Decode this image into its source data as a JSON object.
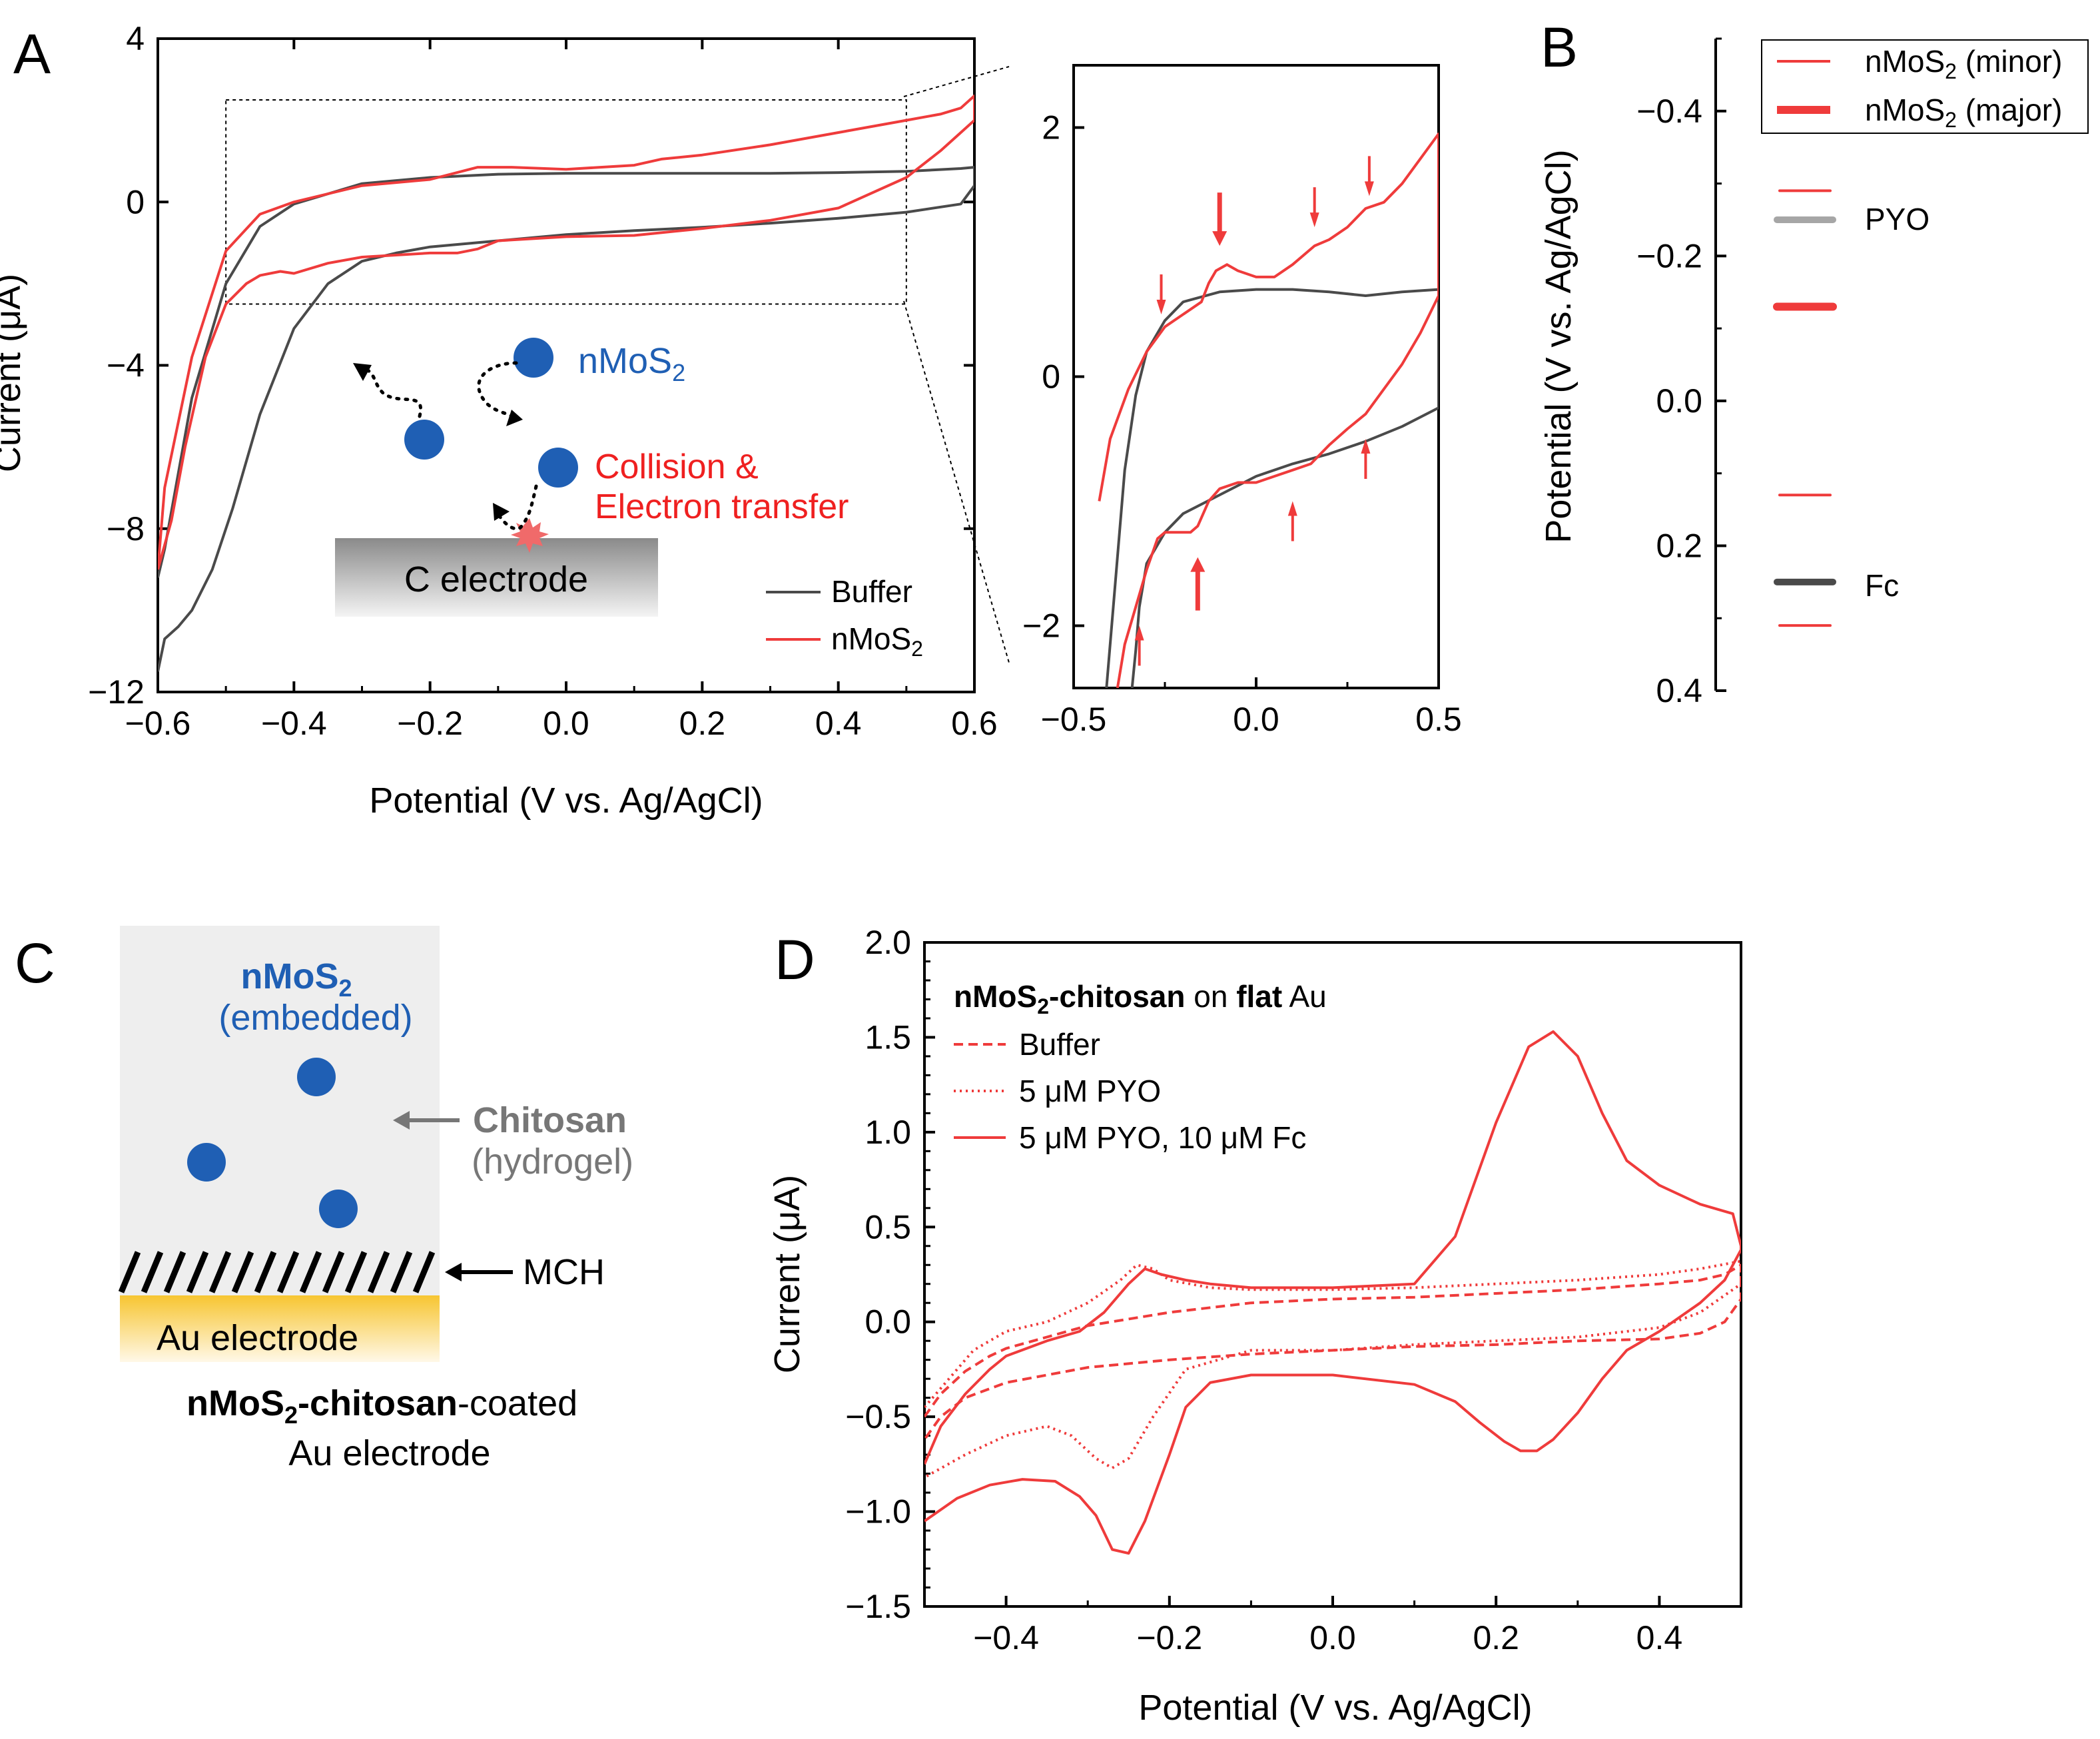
{
  "colors": {
    "buffer": "#4a4a4a",
    "nmos2": "#ef3b3b",
    "pyo": "#a6a6a6",
    "fc": "#4a4a4a",
    "particle": "#1f5fb4",
    "panel_c_bg": "#eeeeee",
    "au": "#f7c531",
    "chitosan_arrow": "#777777"
  },
  "panel_labels": {
    "a": "A",
    "b": "B",
    "c": "C",
    "d": "D"
  },
  "chart_data": [
    {
      "id": "A-main",
      "type": "line",
      "xlabel": "Potential  (V vs. Ag/AgCl)",
      "ylabel": "Current (μA)",
      "xlim": [
        -0.6,
        0.6
      ],
      "ylim": [
        -12,
        4
      ],
      "xticks": [
        -0.6,
        -0.4,
        -0.2,
        0.0,
        0.2,
        0.4,
        0.6
      ],
      "xticklabels": [
        "−0.6",
        "−0.4",
        "−0.2",
        "0.0",
        "0.2",
        "0.4",
        "0.6"
      ],
      "yticks": [
        -12,
        -8,
        -4,
        0,
        4
      ],
      "yticklabels": [
        "−12",
        "−8",
        "−4",
        "0",
        "4"
      ],
      "zoom_box": {
        "x": [
          -0.5,
          0.5
        ],
        "y": [
          -2.5,
          2.5
        ]
      },
      "legend": [
        {
          "label": "Buffer",
          "color": "#4a4a4a"
        },
        {
          "label": "nMoS2",
          "color": "#ef3b3b"
        }
      ],
      "series": [
        {
          "name": "Buffer",
          "x": [
            -0.6,
            -0.59,
            -0.57,
            -0.55,
            -0.52,
            -0.49,
            -0.45,
            -0.4,
            -0.35,
            -0.3,
            -0.25,
            -0.2,
            -0.1,
            0.0,
            0.1,
            0.2,
            0.3,
            0.4,
            0.5,
            0.58,
            0.6,
            0.6,
            0.58,
            0.5,
            0.4,
            0.3,
            0.2,
            0.1,
            0.0,
            -0.1,
            -0.2,
            -0.3,
            -0.4,
            -0.45,
            -0.5,
            -0.55,
            -0.59,
            -0.6
          ],
          "y": [
            -11.5,
            -10.7,
            -10.4,
            -10.0,
            -9.0,
            -7.5,
            -5.2,
            -3.1,
            -2.0,
            -1.45,
            -1.25,
            -1.1,
            -0.95,
            -0.8,
            -0.7,
            -0.62,
            -0.52,
            -0.4,
            -0.25,
            -0.05,
            0.4,
            0.85,
            0.82,
            0.75,
            0.72,
            0.7,
            0.7,
            0.7,
            0.7,
            0.68,
            0.6,
            0.45,
            -0.05,
            -0.6,
            -2.0,
            -4.8,
            -8.5,
            -9.2
          ]
        },
        {
          "name": "nMoS2",
          "x": [
            -0.6,
            -0.58,
            -0.56,
            -0.53,
            -0.5,
            -0.47,
            -0.45,
            -0.42,
            -0.4,
            -0.35,
            -0.3,
            -0.25,
            -0.2,
            -0.16,
            -0.13,
            -0.1,
            0.0,
            0.1,
            0.2,
            0.3,
            0.4,
            0.5,
            0.55,
            0.58,
            0.6,
            0.6,
            0.58,
            0.55,
            0.5,
            0.4,
            0.3,
            0.2,
            0.14,
            0.1,
            0.0,
            -0.08,
            -0.11,
            -0.13,
            -0.2,
            -0.3,
            -0.4,
            -0.45,
            -0.5,
            -0.55,
            -0.59,
            -0.6
          ],
          "y": [
            -9.0,
            -7.8,
            -6.0,
            -3.8,
            -2.5,
            -2.0,
            -1.8,
            -1.7,
            -1.75,
            -1.5,
            -1.35,
            -1.3,
            -1.25,
            -1.25,
            -1.15,
            -0.95,
            -0.85,
            -0.82,
            -0.65,
            -0.45,
            -0.15,
            0.6,
            1.25,
            1.7,
            2.0,
            2.6,
            2.3,
            2.15,
            2.0,
            1.7,
            1.4,
            1.15,
            1.05,
            0.9,
            0.8,
            0.85,
            0.85,
            0.85,
            0.55,
            0.4,
            0.0,
            -0.3,
            -1.2,
            -3.8,
            -7.0,
            -9.0
          ]
        }
      ]
    },
    {
      "id": "A-inset",
      "type": "line",
      "xlim": [
        -0.5,
        0.5
      ],
      "ylim": [
        -2.5,
        2.5
      ],
      "xticks": [
        -0.5,
        0.0,
        0.5
      ],
      "xticklabels": [
        "−0.5",
        "0.0",
        "0.5"
      ],
      "yticks": [
        -2,
        0,
        2
      ],
      "yticklabels": [
        "−2",
        "0",
        "2"
      ],
      "series": [
        {
          "name": "Buffer",
          "x": [
            -0.34,
            -0.33,
            -0.32,
            -0.3,
            -0.25,
            -0.2,
            -0.1,
            0.0,
            0.1,
            0.2,
            0.3,
            0.4,
            0.5,
            0.5,
            0.4,
            0.3,
            0.2,
            0.1,
            0.0,
            -0.1,
            -0.2,
            -0.25,
            -0.3,
            -0.33,
            -0.36,
            -0.39,
            -0.41
          ],
          "y": [
            -2.5,
            -2.2,
            -1.85,
            -1.5,
            -1.25,
            -1.1,
            -0.95,
            -0.8,
            -0.7,
            -0.62,
            -0.52,
            -0.4,
            -0.25,
            0.7,
            0.68,
            0.65,
            0.68,
            0.7,
            0.7,
            0.68,
            0.6,
            0.45,
            0.2,
            -0.15,
            -0.75,
            -1.8,
            -2.5
          ]
        },
        {
          "name": "nMoS2",
          "x": [
            -0.38,
            -0.36,
            -0.33,
            -0.3,
            -0.27,
            -0.25,
            -0.22,
            -0.18,
            -0.16,
            -0.13,
            -0.1,
            -0.05,
            0.0,
            0.05,
            0.1,
            0.15,
            0.2,
            0.25,
            0.3,
            0.35,
            0.4,
            0.45,
            0.5,
            0.5,
            0.45,
            0.4,
            0.35,
            0.3,
            0.25,
            0.2,
            0.16,
            0.1,
            0.05,
            0.0,
            -0.05,
            -0.08,
            -0.11,
            -0.13,
            -0.15,
            -0.2,
            -0.25,
            -0.3,
            -0.35,
            -0.4,
            -0.43
          ],
          "y": [
            -2.5,
            -2.15,
            -1.85,
            -1.55,
            -1.3,
            -1.25,
            -1.25,
            -1.25,
            -1.2,
            -1.0,
            -0.9,
            -0.85,
            -0.85,
            -0.8,
            -0.75,
            -0.7,
            -0.55,
            -0.42,
            -0.3,
            -0.1,
            0.1,
            0.35,
            0.65,
            1.95,
            1.75,
            1.55,
            1.4,
            1.35,
            1.2,
            1.1,
            1.05,
            0.9,
            0.8,
            0.8,
            0.85,
            0.9,
            0.85,
            0.75,
            0.6,
            0.5,
            0.4,
            0.2,
            -0.1,
            -0.5,
            -1.0
          ]
        }
      ],
      "arrows": [
        {
          "x": -0.26,
          "y": 0.5,
          "dir": "down",
          "size": "minor"
        },
        {
          "x": -0.1,
          "y": 1.05,
          "dir": "down",
          "size": "major"
        },
        {
          "x": 0.16,
          "y": 1.2,
          "dir": "down",
          "size": "minor"
        },
        {
          "x": 0.31,
          "y": 1.45,
          "dir": "down",
          "size": "minor"
        },
        {
          "x": -0.32,
          "y": -2.0,
          "dir": "up",
          "size": "minor"
        },
        {
          "x": -0.16,
          "y": -1.45,
          "dir": "up",
          "size": "major"
        },
        {
          "x": 0.1,
          "y": -1.0,
          "dir": "up",
          "size": "minor"
        },
        {
          "x": 0.3,
          "y": -0.5,
          "dir": "up",
          "size": "minor"
        }
      ]
    },
    {
      "id": "B",
      "type": "scatter",
      "ylabel": "Potential (V vs. Ag/AgCl)",
      "ylim": [
        0.4,
        -0.5
      ],
      "yticks": [
        -0.4,
        -0.2,
        0.0,
        0.2,
        0.4
      ],
      "yticklabels": [
        "−0.4",
        "−0.2",
        "0.0",
        "0.2",
        "0.4"
      ],
      "levels": [
        {
          "potential": -0.29,
          "kind": "nMoS2 (minor)"
        },
        {
          "potential": -0.13,
          "kind": "nMoS2 (major)"
        },
        {
          "potential": 0.13,
          "kind": "nMoS2 (minor)"
        },
        {
          "potential": 0.31,
          "kind": "nMoS2 (minor)"
        },
        {
          "potential": -0.25,
          "kind": "PYO",
          "label": "PYO"
        },
        {
          "potential": 0.25,
          "kind": "Fc",
          "label": "Fc"
        }
      ],
      "legend": [
        "nMoS2 (minor)",
        "nMoS2 (major)"
      ]
    },
    {
      "id": "D",
      "type": "line",
      "title": "nMoS2-chitosan on flat Au",
      "xlabel": "Potential  (V vs. Ag/AgCl)",
      "ylabel": "Current (μA)",
      "xlim": [
        -0.5,
        0.5
      ],
      "ylim": [
        -1.5,
        2.0
      ],
      "xticks": [
        -0.4,
        -0.2,
        0.0,
        0.2,
        0.4
      ],
      "xticklabels": [
        "−0.4",
        "−0.2",
        "0.0",
        "0.2",
        "0.4"
      ],
      "yticks": [
        -1.5,
        -1.0,
        -0.5,
        0.0,
        0.5,
        1.0,
        1.5,
        2.0
      ],
      "yticklabels": [
        "−1.5",
        "−1.0",
        "−0.5",
        "0.0",
        "0.5",
        "1.0",
        "1.5",
        "2.0"
      ],
      "legend": [
        {
          "label": "Buffer",
          "style": "dashed"
        },
        {
          "label": "5 μM PYO",
          "style": "dotted"
        },
        {
          "label": "5 μM PYO, 10 μM Fc",
          "style": "solid"
        }
      ],
      "series": [
        {
          "name": "Buffer",
          "style": "dashed",
          "x": [
            -0.5,
            -0.48,
            -0.45,
            -0.42,
            -0.4,
            -0.35,
            -0.3,
            -0.2,
            -0.1,
            0.0,
            0.1,
            0.2,
            0.3,
            0.4,
            0.45,
            0.48,
            0.5,
            0.5,
            0.48,
            0.45,
            0.4,
            0.3,
            0.2,
            0.1,
            0.0,
            -0.1,
            -0.2,
            -0.3,
            -0.35,
            -0.4,
            -0.45,
            -0.48,
            -0.5
          ],
          "y": [
            -0.5,
            -0.38,
            -0.26,
            -0.18,
            -0.14,
            -0.08,
            -0.02,
            0.05,
            0.1,
            0.12,
            0.13,
            0.15,
            0.17,
            0.2,
            0.22,
            0.25,
            0.3,
            0.12,
            0.0,
            -0.06,
            -0.09,
            -0.1,
            -0.12,
            -0.13,
            -0.15,
            -0.17,
            -0.2,
            -0.24,
            -0.28,
            -0.32,
            -0.4,
            -0.5,
            -0.62
          ]
        },
        {
          "name": "5 μM PYO",
          "style": "dotted",
          "x": [
            -0.5,
            -0.47,
            -0.44,
            -0.4,
            -0.35,
            -0.3,
            -0.26,
            -0.24,
            -0.22,
            -0.2,
            -0.15,
            -0.1,
            0.0,
            0.1,
            0.2,
            0.3,
            0.4,
            0.45,
            0.5,
            0.5,
            0.45,
            0.4,
            0.3,
            0.2,
            0.1,
            0.0,
            -0.1,
            -0.18,
            -0.22,
            -0.25,
            -0.27,
            -0.29,
            -0.32,
            -0.35,
            -0.4,
            -0.45,
            -0.5
          ],
          "y": [
            -0.45,
            -0.3,
            -0.15,
            -0.05,
            0.0,
            0.1,
            0.22,
            0.3,
            0.28,
            0.22,
            0.18,
            0.17,
            0.17,
            0.18,
            0.2,
            0.22,
            0.25,
            0.28,
            0.32,
            0.2,
            0.05,
            -0.03,
            -0.08,
            -0.1,
            -0.12,
            -0.15,
            -0.15,
            -0.25,
            -0.5,
            -0.72,
            -0.77,
            -0.72,
            -0.6,
            -0.55,
            -0.6,
            -0.7,
            -0.82
          ]
        },
        {
          "name": "5 μM PYO, 10 μM Fc",
          "style": "solid",
          "x": [
            -0.5,
            -0.48,
            -0.45,
            -0.42,
            -0.4,
            -0.35,
            -0.31,
            -0.28,
            -0.25,
            -0.23,
            -0.21,
            -0.18,
            -0.15,
            -0.1,
            0.0,
            0.1,
            0.15,
            0.2,
            0.24,
            0.27,
            0.3,
            0.33,
            0.36,
            0.4,
            0.45,
            0.49,
            0.5,
            0.5,
            0.48,
            0.45,
            0.4,
            0.36,
            0.33,
            0.3,
            0.27,
            0.25,
            0.23,
            0.21,
            0.18,
            0.15,
            0.1,
            0.0,
            -0.1,
            -0.15,
            -0.18,
            -0.2,
            -0.23,
            -0.25,
            -0.27,
            -0.29,
            -0.31,
            -0.34,
            -0.38,
            -0.42,
            -0.46,
            -0.5
          ],
          "y": [
            -0.75,
            -0.55,
            -0.38,
            -0.25,
            -0.18,
            -0.1,
            -0.05,
            0.05,
            0.2,
            0.28,
            0.25,
            0.22,
            0.2,
            0.18,
            0.18,
            0.2,
            0.45,
            1.05,
            1.45,
            1.53,
            1.4,
            1.1,
            0.85,
            0.72,
            0.62,
            0.57,
            0.4,
            0.38,
            0.22,
            0.1,
            -0.05,
            -0.15,
            -0.3,
            -0.48,
            -0.62,
            -0.68,
            -0.68,
            -0.63,
            -0.53,
            -0.42,
            -0.33,
            -0.28,
            -0.28,
            -0.32,
            -0.45,
            -0.7,
            -1.05,
            -1.22,
            -1.2,
            -1.02,
            -0.92,
            -0.84,
            -0.83,
            -0.86,
            -0.93,
            -1.05
          ]
        }
      ]
    }
  ],
  "panel_a": {
    "nmos2_label": "nMoS",
    "nmos2_sub": "2",
    "collision_line1": "Collision &",
    "collision_line2": "Electron transfer",
    "electrode_label": "C electrode"
  },
  "panel_b": {
    "legend_minor": "nMoS",
    "legend_minor_sub": "2",
    "legend_minor_suffix": " (minor)",
    "legend_major": "nMoS",
    "legend_major_sub": "2",
    "legend_major_suffix": " (major)",
    "pyo_label": "PYO",
    "fc_label": "Fc"
  },
  "panel_c": {
    "nmos2": "nMoS",
    "nmos2_sub": "2",
    "embedded": "(embedded)",
    "chitosan": "Chitosan",
    "hydrogel": "(hydrogel)",
    "mch": "MCH",
    "au_electrode": "Au electrode",
    "caption_bold": "nMoS",
    "caption_sub": "2",
    "caption_bold2": "-chitosan",
    "caption_rest": "-coated",
    "caption_line2": "Au electrode"
  },
  "panel_d": {
    "title_bold": "nMoS",
    "title_sub": "2",
    "title_bold2": "-chitosan",
    "title_mid": " on ",
    "title_bold3": "flat",
    "title_end": " Au"
  }
}
